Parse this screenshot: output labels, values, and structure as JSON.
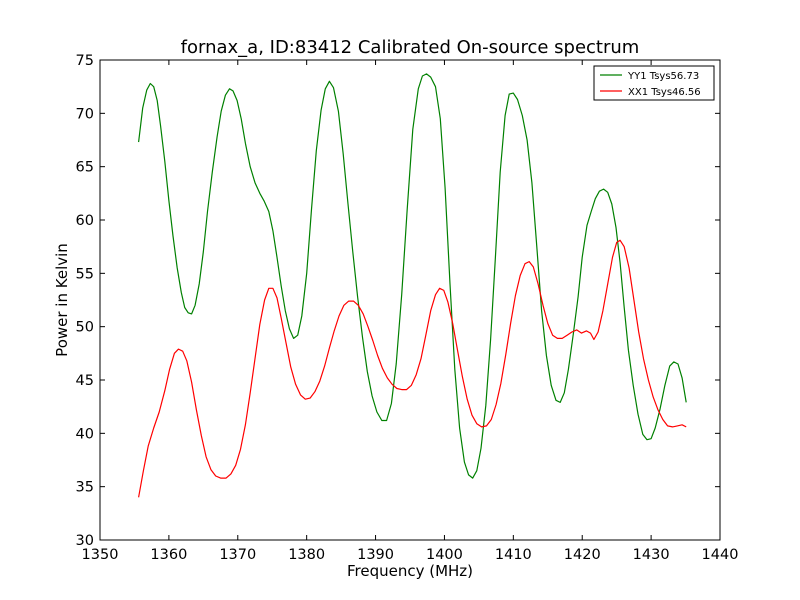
{
  "chart_data": {
    "type": "line",
    "title": "fornax_a, ID:83412 Calibrated On-source spectrum",
    "xlabel": "Frequency (MHz)",
    "ylabel": "Power in Kelvin",
    "xlim": [
      1350,
      1440
    ],
    "ylim": [
      30,
      75
    ],
    "xticks": [
      1350,
      1360,
      1370,
      1380,
      1390,
      1400,
      1410,
      1420,
      1430,
      1440
    ],
    "yticks": [
      30,
      35,
      40,
      45,
      50,
      55,
      60,
      65,
      70,
      75
    ],
    "grid": false,
    "legend_position": "top-right",
    "series": [
      {
        "name": "YY1 Tsys56.73",
        "color": "#008000",
        "points": [
          [
            1355.6,
            67.3
          ],
          [
            1356.2,
            70.5
          ],
          [
            1356.8,
            72.2
          ],
          [
            1357.3,
            72.8
          ],
          [
            1357.8,
            72.5
          ],
          [
            1358.3,
            71.2
          ],
          [
            1358.8,
            68.8
          ],
          [
            1359.4,
            65.5
          ],
          [
            1360.0,
            61.8
          ],
          [
            1360.6,
            58.5
          ],
          [
            1361.2,
            55.5
          ],
          [
            1361.8,
            53.2
          ],
          [
            1362.3,
            51.8
          ],
          [
            1362.8,
            51.3
          ],
          [
            1363.3,
            51.2
          ],
          [
            1363.8,
            52.0
          ],
          [
            1364.4,
            54.0
          ],
          [
            1365.0,
            57.0
          ],
          [
            1365.6,
            60.8
          ],
          [
            1366.3,
            64.5
          ],
          [
            1367.0,
            67.8
          ],
          [
            1367.6,
            70.2
          ],
          [
            1368.2,
            71.7
          ],
          [
            1368.8,
            72.3
          ],
          [
            1369.3,
            72.1
          ],
          [
            1369.9,
            71.2
          ],
          [
            1370.5,
            69.5
          ],
          [
            1371.1,
            67.2
          ],
          [
            1371.8,
            65.0
          ],
          [
            1372.5,
            63.5
          ],
          [
            1373.2,
            62.5
          ],
          [
            1373.8,
            61.8
          ],
          [
            1374.5,
            60.8
          ],
          [
            1375.1,
            59.0
          ],
          [
            1375.7,
            56.5
          ],
          [
            1376.3,
            53.8
          ],
          [
            1376.9,
            51.5
          ],
          [
            1377.5,
            49.8
          ],
          [
            1378.1,
            48.9
          ],
          [
            1378.7,
            49.2
          ],
          [
            1379.3,
            51.0
          ],
          [
            1380.0,
            55.0
          ],
          [
            1380.7,
            61.0
          ],
          [
            1381.4,
            66.5
          ],
          [
            1382.1,
            70.3
          ],
          [
            1382.7,
            72.3
          ],
          [
            1383.3,
            73.0
          ],
          [
            1383.9,
            72.4
          ],
          [
            1384.6,
            70.2
          ],
          [
            1385.3,
            66.2
          ],
          [
            1386.0,
            61.5
          ],
          [
            1386.7,
            57.0
          ],
          [
            1387.4,
            52.8
          ],
          [
            1388.1,
            49.0
          ],
          [
            1388.8,
            45.8
          ],
          [
            1389.5,
            43.5
          ],
          [
            1390.2,
            42.0
          ],
          [
            1390.9,
            41.2
          ],
          [
            1391.6,
            41.2
          ],
          [
            1392.3,
            42.8
          ],
          [
            1393.0,
            46.5
          ],
          [
            1393.8,
            53.0
          ],
          [
            1394.6,
            61.0
          ],
          [
            1395.4,
            68.5
          ],
          [
            1396.2,
            72.3
          ],
          [
            1396.8,
            73.5
          ],
          [
            1397.4,
            73.7
          ],
          [
            1398.0,
            73.4
          ],
          [
            1398.7,
            72.5
          ],
          [
            1399.4,
            69.5
          ],
          [
            1400.1,
            63.0
          ],
          [
            1400.8,
            54.0
          ],
          [
            1401.5,
            46.0
          ],
          [
            1402.2,
            40.5
          ],
          [
            1402.9,
            37.3
          ],
          [
            1403.5,
            36.1
          ],
          [
            1404.1,
            35.8
          ],
          [
            1404.7,
            36.5
          ],
          [
            1405.3,
            38.6
          ],
          [
            1406.0,
            42.6
          ],
          [
            1406.7,
            48.8
          ],
          [
            1407.4,
            56.5
          ],
          [
            1408.1,
            64.5
          ],
          [
            1408.8,
            69.8
          ],
          [
            1409.4,
            71.8
          ],
          [
            1410.0,
            71.9
          ],
          [
            1410.6,
            71.3
          ],
          [
            1411.3,
            69.8
          ],
          [
            1412.0,
            67.5
          ],
          [
            1412.7,
            63.5
          ],
          [
            1413.4,
            57.5
          ],
          [
            1414.1,
            51.5
          ],
          [
            1414.8,
            47.3
          ],
          [
            1415.5,
            44.5
          ],
          [
            1416.2,
            43.1
          ],
          [
            1416.8,
            42.9
          ],
          [
            1417.4,
            43.8
          ],
          [
            1418.0,
            46.0
          ],
          [
            1418.7,
            49.3
          ],
          [
            1419.4,
            52.8
          ],
          [
            1420.0,
            56.5
          ],
          [
            1420.7,
            59.5
          ],
          [
            1421.3,
            60.8
          ],
          [
            1421.9,
            62.0
          ],
          [
            1422.5,
            62.7
          ],
          [
            1423.1,
            62.9
          ],
          [
            1423.7,
            62.6
          ],
          [
            1424.3,
            61.5
          ],
          [
            1424.9,
            59.3
          ],
          [
            1425.5,
            56.0
          ],
          [
            1426.1,
            51.8
          ],
          [
            1426.7,
            47.8
          ],
          [
            1427.4,
            44.5
          ],
          [
            1428.1,
            41.8
          ],
          [
            1428.8,
            39.9
          ],
          [
            1429.4,
            39.4
          ],
          [
            1430.0,
            39.5
          ],
          [
            1430.6,
            40.5
          ],
          [
            1431.3,
            42.3
          ],
          [
            1432.0,
            44.5
          ],
          [
            1432.7,
            46.3
          ],
          [
            1433.3,
            46.7
          ],
          [
            1433.9,
            46.5
          ],
          [
            1434.5,
            45.2
          ],
          [
            1435.1,
            42.9
          ]
        ]
      },
      {
        "name": "XX1 Tsys46.56",
        "color": "#ff0000",
        "points": [
          [
            1355.6,
            34.0
          ],
          [
            1356.3,
            36.5
          ],
          [
            1357.0,
            38.8
          ],
          [
            1357.8,
            40.5
          ],
          [
            1358.6,
            42.0
          ],
          [
            1359.4,
            44.0
          ],
          [
            1360.1,
            46.0
          ],
          [
            1360.8,
            47.5
          ],
          [
            1361.4,
            47.9
          ],
          [
            1362.0,
            47.7
          ],
          [
            1362.6,
            46.8
          ],
          [
            1363.3,
            44.8
          ],
          [
            1364.0,
            42.2
          ],
          [
            1364.7,
            39.8
          ],
          [
            1365.4,
            37.8
          ],
          [
            1366.1,
            36.6
          ],
          [
            1366.8,
            36.0
          ],
          [
            1367.5,
            35.8
          ],
          [
            1368.3,
            35.8
          ],
          [
            1369.0,
            36.2
          ],
          [
            1369.7,
            37.0
          ],
          [
            1370.4,
            38.5
          ],
          [
            1371.1,
            40.8
          ],
          [
            1371.8,
            43.8
          ],
          [
            1372.5,
            47.0
          ],
          [
            1373.2,
            50.2
          ],
          [
            1373.9,
            52.5
          ],
          [
            1374.5,
            53.6
          ],
          [
            1375.1,
            53.6
          ],
          [
            1375.7,
            52.7
          ],
          [
            1376.3,
            50.8
          ],
          [
            1377.0,
            48.5
          ],
          [
            1377.7,
            46.2
          ],
          [
            1378.4,
            44.6
          ],
          [
            1379.1,
            43.6
          ],
          [
            1379.8,
            43.2
          ],
          [
            1380.5,
            43.3
          ],
          [
            1381.2,
            43.9
          ],
          [
            1381.9,
            44.9
          ],
          [
            1382.6,
            46.3
          ],
          [
            1383.3,
            48.0
          ],
          [
            1384.0,
            49.6
          ],
          [
            1384.7,
            51.0
          ],
          [
            1385.4,
            52.0
          ],
          [
            1386.1,
            52.4
          ],
          [
            1386.8,
            52.4
          ],
          [
            1387.5,
            52.0
          ],
          [
            1388.2,
            51.2
          ],
          [
            1388.9,
            50.0
          ],
          [
            1389.6,
            48.7
          ],
          [
            1390.3,
            47.3
          ],
          [
            1391.0,
            46.1
          ],
          [
            1391.7,
            45.2
          ],
          [
            1392.4,
            44.6
          ],
          [
            1393.1,
            44.2
          ],
          [
            1393.8,
            44.1
          ],
          [
            1394.5,
            44.1
          ],
          [
            1395.2,
            44.5
          ],
          [
            1395.9,
            45.5
          ],
          [
            1396.6,
            47.0
          ],
          [
            1397.3,
            49.2
          ],
          [
            1398.0,
            51.5
          ],
          [
            1398.7,
            53.0
          ],
          [
            1399.3,
            53.6
          ],
          [
            1399.9,
            53.4
          ],
          [
            1400.5,
            52.3
          ],
          [
            1401.2,
            50.3
          ],
          [
            1401.9,
            47.8
          ],
          [
            1402.6,
            45.3
          ],
          [
            1403.3,
            43.2
          ],
          [
            1404.0,
            41.7
          ],
          [
            1404.7,
            40.9
          ],
          [
            1405.4,
            40.6
          ],
          [
            1406.1,
            40.7
          ],
          [
            1406.8,
            41.3
          ],
          [
            1407.5,
            42.7
          ],
          [
            1408.2,
            44.7
          ],
          [
            1408.9,
            47.4
          ],
          [
            1409.6,
            50.3
          ],
          [
            1410.3,
            52.9
          ],
          [
            1411.0,
            54.8
          ],
          [
            1411.7,
            55.9
          ],
          [
            1412.3,
            56.1
          ],
          [
            1412.9,
            55.6
          ],
          [
            1413.6,
            54.0
          ],
          [
            1414.3,
            52.0
          ],
          [
            1415.0,
            50.3
          ],
          [
            1415.7,
            49.2
          ],
          [
            1416.4,
            48.9
          ],
          [
            1417.1,
            48.9
          ],
          [
            1417.8,
            49.2
          ],
          [
            1418.5,
            49.5
          ],
          [
            1419.2,
            49.7
          ],
          [
            1419.9,
            49.4
          ],
          [
            1420.6,
            49.6
          ],
          [
            1421.2,
            49.4
          ],
          [
            1421.7,
            48.8
          ],
          [
            1422.3,
            49.5
          ],
          [
            1423.0,
            51.5
          ],
          [
            1423.7,
            54.0
          ],
          [
            1424.4,
            56.5
          ],
          [
            1425.0,
            57.9
          ],
          [
            1425.5,
            58.1
          ],
          [
            1426.1,
            57.5
          ],
          [
            1426.8,
            55.5
          ],
          [
            1427.5,
            52.5
          ],
          [
            1428.2,
            49.5
          ],
          [
            1428.9,
            47.0
          ],
          [
            1429.6,
            45.0
          ],
          [
            1430.3,
            43.4
          ],
          [
            1431.0,
            42.2
          ],
          [
            1431.7,
            41.3
          ],
          [
            1432.4,
            40.7
          ],
          [
            1433.1,
            40.6
          ],
          [
            1433.8,
            40.7
          ],
          [
            1434.5,
            40.8
          ],
          [
            1435.1,
            40.6
          ]
        ]
      }
    ]
  }
}
